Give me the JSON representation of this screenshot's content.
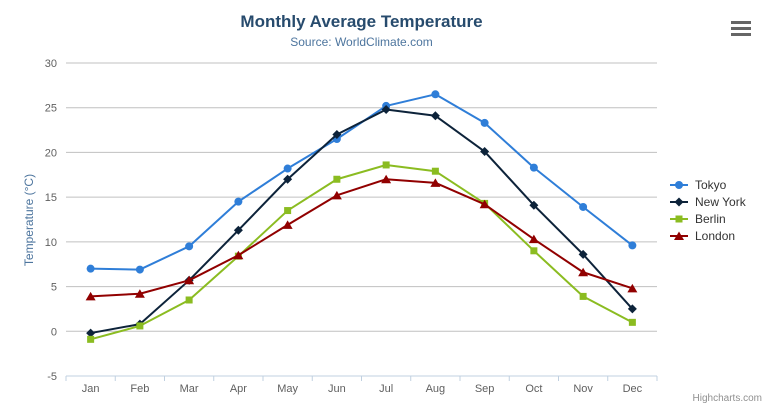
{
  "chart_data": {
    "type": "line",
    "title": "Monthly Average Temperature",
    "subtitle": "Source: WorldClimate.com",
    "xlabel": "",
    "ylabel": "Temperature (°C)",
    "categories": [
      "Jan",
      "Feb",
      "Mar",
      "Apr",
      "May",
      "Jun",
      "Jul",
      "Aug",
      "Sep",
      "Oct",
      "Nov",
      "Dec"
    ],
    "ylim": [
      -5,
      30
    ],
    "yticks": [
      -5,
      0,
      5,
      10,
      15,
      20,
      25,
      30
    ],
    "grid": true,
    "legend_position": "right",
    "series": [
      {
        "name": "Tokyo",
        "color": "#2f7ed8",
        "marker": "circle",
        "values": [
          7.0,
          6.9,
          9.5,
          14.5,
          18.2,
          21.5,
          25.2,
          26.5,
          23.3,
          18.3,
          13.9,
          9.6
        ]
      },
      {
        "name": "New York",
        "color": "#0d233a",
        "marker": "diamond",
        "values": [
          -0.2,
          0.8,
          5.7,
          11.3,
          17.0,
          22.0,
          24.8,
          24.1,
          20.1,
          14.1,
          8.6,
          2.5
        ]
      },
      {
        "name": "Berlin",
        "color": "#8bbc21",
        "marker": "square",
        "values": [
          -0.9,
          0.6,
          3.5,
          8.4,
          13.5,
          17.0,
          18.6,
          17.9,
          14.3,
          9.0,
          3.9,
          1.0
        ]
      },
      {
        "name": "London",
        "color": "#910000",
        "marker": "triangle",
        "values": [
          3.9,
          4.2,
          5.7,
          8.5,
          11.9,
          15.2,
          17.0,
          16.6,
          14.2,
          10.3,
          6.6,
          4.8
        ]
      }
    ]
  },
  "credits": {
    "text": "Highcharts.com"
  },
  "export_menu": {
    "icon": "hamburger-icon"
  },
  "style": {
    "title_color": "#274b6d",
    "subtitle_color": "#4d759e",
    "axis_title_color": "#4d759e",
    "axis_label_color": "#606060",
    "grid_color": "#c0c0c0",
    "axis_line_color": "#c0d0e0",
    "legend_text_color": "#333333",
    "credits_color": "#909090",
    "menu_icon_color": "#666666",
    "background": "#ffffff"
  }
}
